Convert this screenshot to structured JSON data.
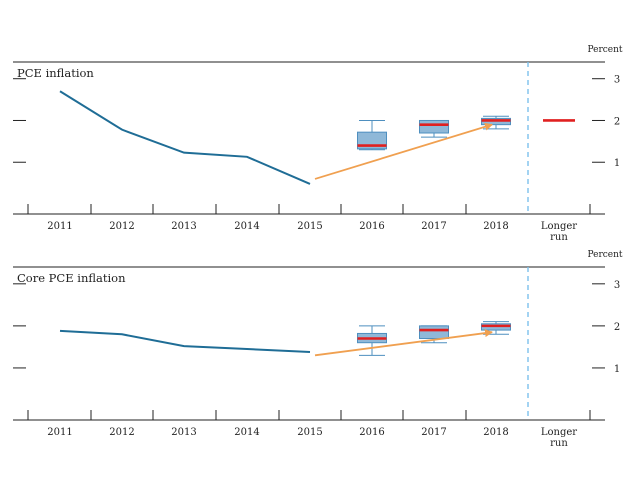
{
  "chart_data": [
    {
      "type": "line",
      "title": "PCE inflation",
      "unit_label": "Percent",
      "categories": [
        "2011",
        "2012",
        "2013",
        "2014",
        "2015",
        "2016",
        "2017",
        "2018",
        "Longer run"
      ],
      "ylim": [
        0,
        3.4
      ],
      "yticks": [
        1,
        2,
        3
      ],
      "history": {
        "x": [
          "2011",
          "2012",
          "2013",
          "2014",
          "2015"
        ],
        "values": [
          2.7,
          1.78,
          1.23,
          1.13,
          0.48
        ]
      },
      "projections": [
        {
          "x": "2016",
          "min": 1.3,
          "q1": 1.32,
          "median": 1.4,
          "q3": 1.72,
          "max": 2.0
        },
        {
          "x": "2017",
          "min": 1.6,
          "q1": 1.7,
          "median": 1.9,
          "q3": 2.0,
          "max": 2.0
        },
        {
          "x": "2018",
          "min": 1.8,
          "q1": 1.9,
          "median": 2.0,
          "q3": 2.05,
          "max": 2.1
        },
        {
          "x": "Longer run",
          "median": 2.0
        }
      ],
      "arrow": {
        "from": {
          "x": "2015",
          "value": 0.6
        },
        "to": {
          "x": "2018",
          "value": 1.9
        }
      },
      "colors": {
        "history": "#1f6d96",
        "box_fill": "#8fb8d8",
        "box_stroke": "#4e8fbf",
        "median": "#e02020",
        "arrow": "#f0a050",
        "divider": "#7cc0ec"
      }
    },
    {
      "type": "line",
      "title": "Core PCE inflation",
      "unit_label": "Percent",
      "categories": [
        "2011",
        "2012",
        "2013",
        "2014",
        "2015",
        "2016",
        "2017",
        "2018",
        "Longer run"
      ],
      "ylim": [
        0,
        3.4
      ],
      "yticks": [
        1,
        2,
        3
      ],
      "history": {
        "x": [
          "2011",
          "2012",
          "2013",
          "2014",
          "2015"
        ],
        "values": [
          1.88,
          1.8,
          1.52,
          1.45,
          1.38
        ]
      },
      "projections": [
        {
          "x": "2016",
          "min": 1.3,
          "q1": 1.6,
          "median": 1.7,
          "q3": 1.82,
          "max": 2.0
        },
        {
          "x": "2017",
          "min": 1.6,
          "q1": 1.7,
          "median": 1.9,
          "q3": 2.0,
          "max": 2.0
        },
        {
          "x": "2018",
          "min": 1.8,
          "q1": 1.9,
          "median": 2.0,
          "q3": 2.05,
          "max": 2.1
        }
      ],
      "arrow": {
        "from": {
          "x": "2015",
          "value": 1.3
        },
        "to": {
          "x": "2018",
          "value": 1.85
        }
      },
      "colors": {
        "history": "#1f6d96",
        "box_fill": "#8fb8d8",
        "box_stroke": "#4e8fbf",
        "median": "#e02020",
        "arrow": "#f0a050",
        "divider": "#7cc0ec"
      }
    }
  ]
}
